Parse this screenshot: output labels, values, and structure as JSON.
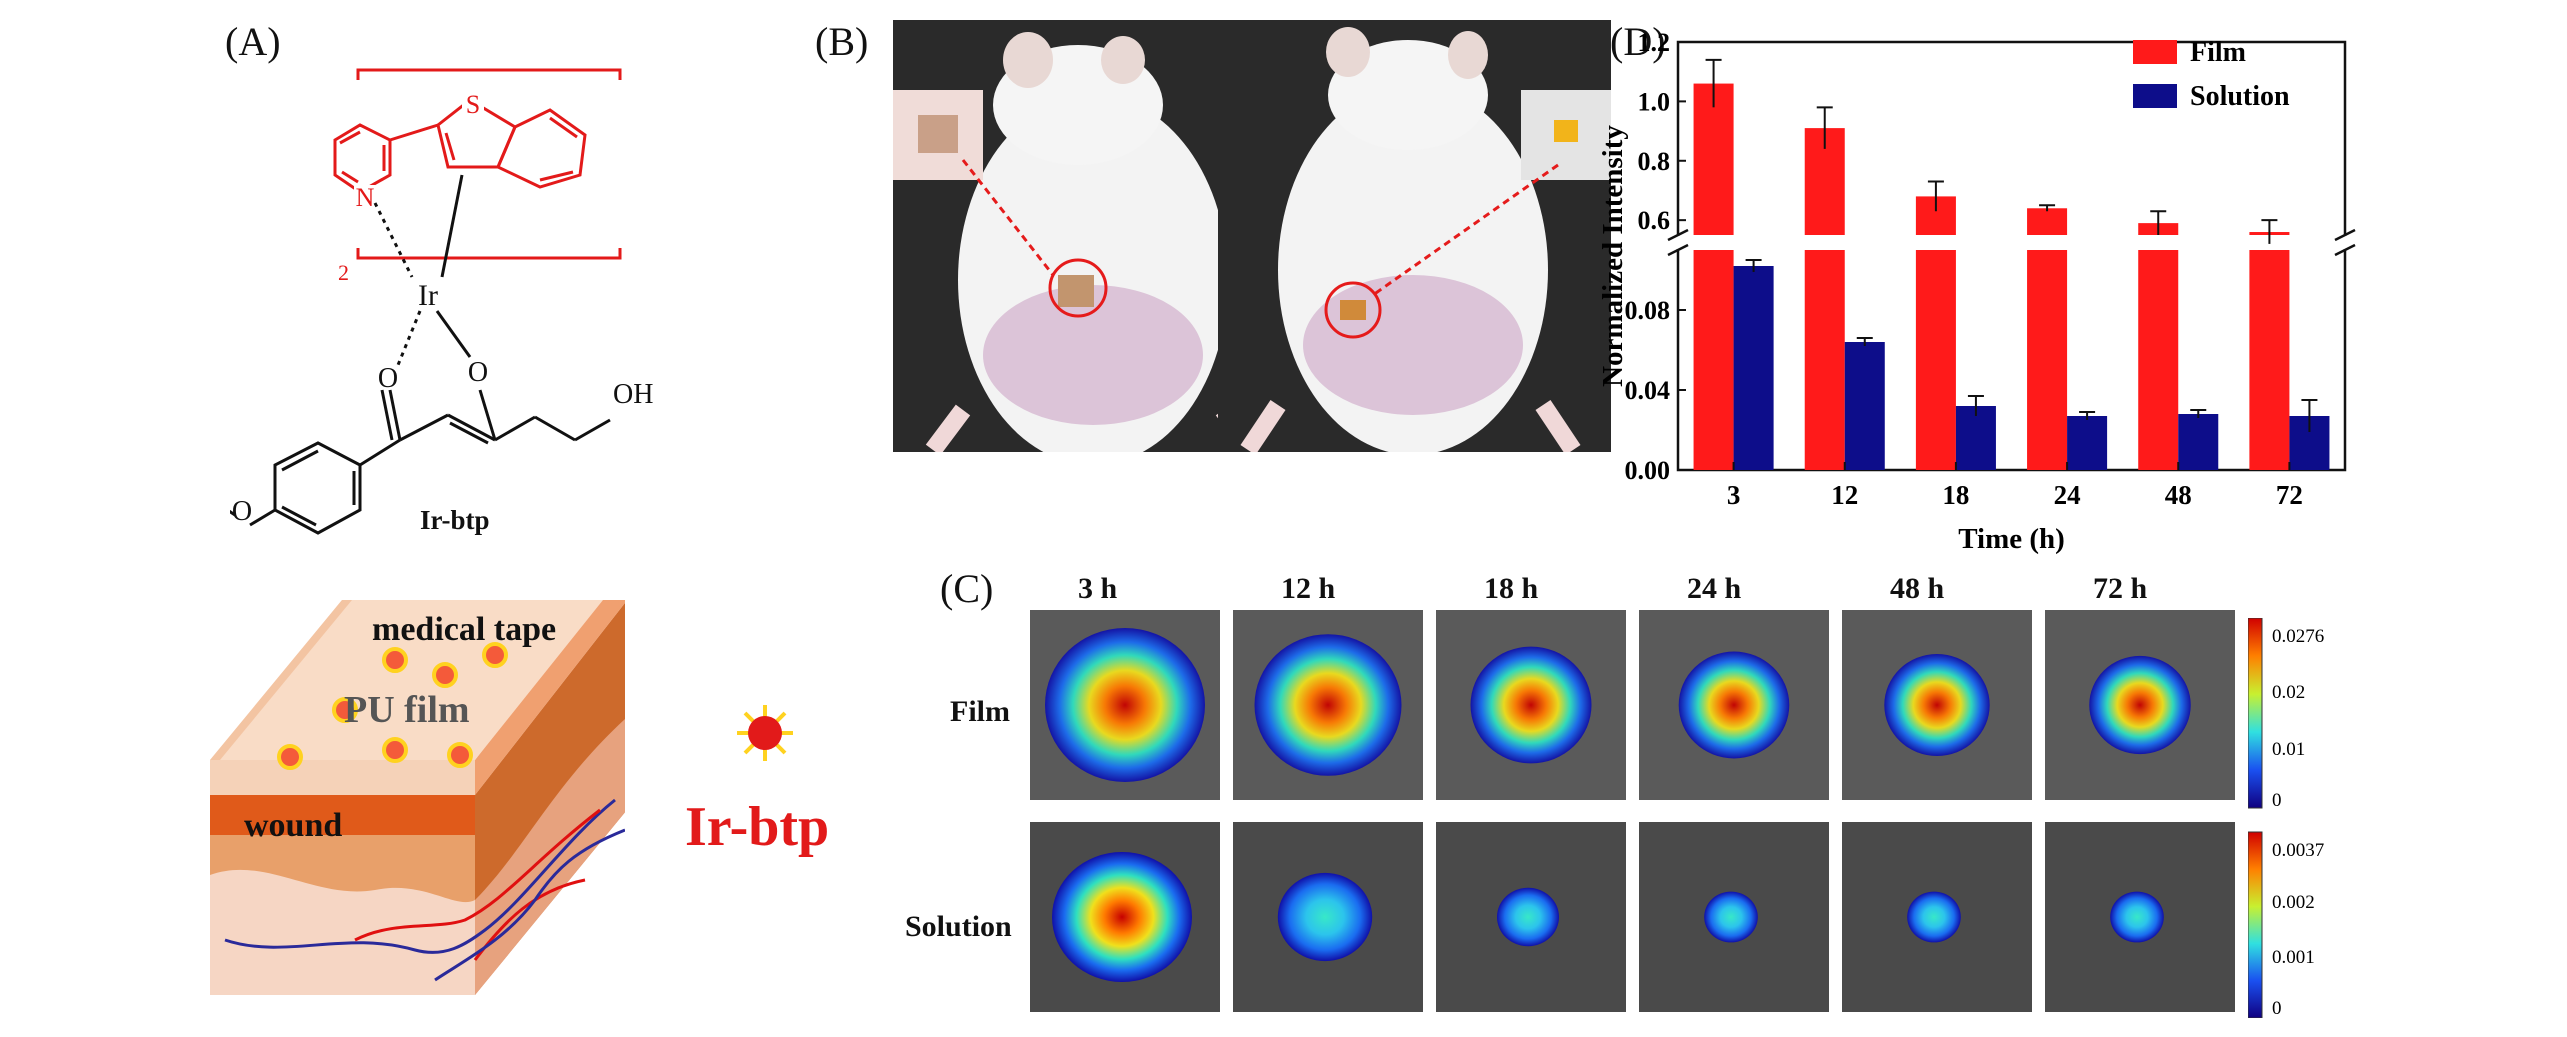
{
  "panel_a": {
    "label": "(A)",
    "atoms": {
      "S": "S",
      "N": "N",
      "Ir": "Ir",
      "O1": "O",
      "O2": "O",
      "OH": "OH",
      "sub": "2"
    },
    "compound_name": "Ir-btp"
  },
  "panel_b": {
    "label": "(B)"
  },
  "panel_c": {
    "label": "(C)",
    "times": [
      "3 h",
      "12 h",
      "18 h",
      "24 h",
      "48 h",
      "72 h"
    ],
    "rows": [
      "Film",
      "Solution"
    ],
    "film_intensity": [
      1.0,
      0.9,
      0.7,
      0.62,
      0.58,
      0.55
    ],
    "solution_intensity": [
      1.0,
      0.62,
      0.35,
      0.28,
      0.28,
      0.28
    ],
    "film_scale": [
      "0.0276",
      "0.02",
      "0.01",
      "0"
    ],
    "solution_scale": [
      "0.0037",
      "0.002",
      "0.001",
      "0"
    ]
  },
  "panel_d": {
    "label": "(D)"
  },
  "schematic": {
    "layers": [
      "medical tape",
      "PU film",
      "wound"
    ],
    "legend_label": "Ir-btp"
  },
  "chart_data": {
    "type": "bar",
    "categories": [
      "3",
      "12",
      "18",
      "24",
      "48",
      "72"
    ],
    "series": [
      {
        "name": "Film",
        "values": [
          1.06,
          0.91,
          0.68,
          0.64,
          0.59,
          0.56
        ],
        "errors": [
          0.08,
          0.07,
          0.05,
          0.01,
          0.04,
          0.04
        ],
        "color": "#ff1a1a"
      },
      {
        "name": "Solution",
        "values": [
          0.102,
          0.064,
          0.032,
          0.027,
          0.028,
          0.027
        ],
        "errors": [
          0.003,
          0.002,
          0.005,
          0.002,
          0.002,
          0.008
        ],
        "color": "#0d0d8a"
      }
    ],
    "xlabel": "Time (h)",
    "ylabel": "Normalized Intensity",
    "y_upper_ticks": [
      "1.2",
      "1.0",
      "0.8",
      "0.6"
    ],
    "y_lower_ticks": [
      "0.08",
      "0.04",
      "0.00"
    ],
    "y_upper_range": [
      0.55,
      1.2
    ],
    "y_lower_range": [
      0,
      0.11
    ],
    "broken_axis": true,
    "legend_position": "top-right"
  }
}
